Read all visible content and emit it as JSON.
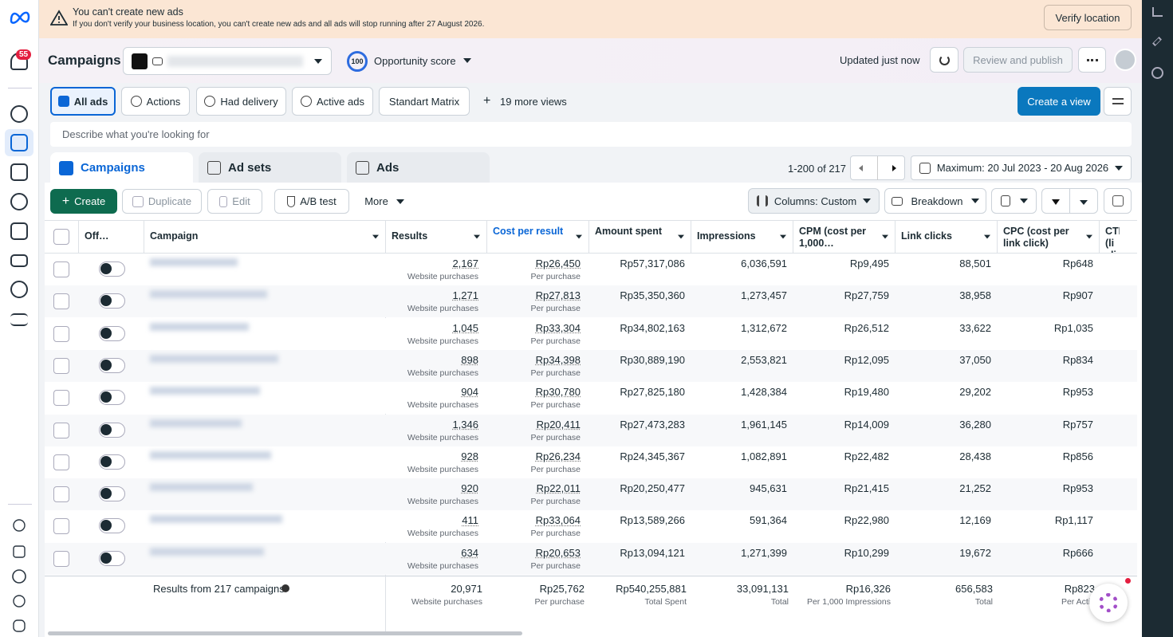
{
  "banner": {
    "title": "You can't create new ads",
    "message": "If you don't verify your business location, you can't create new ads and all ads will stop running after 27 August 2026.",
    "button": "Verify location"
  },
  "sidebar": {
    "notifications": "55"
  },
  "header": {
    "title": "Campaigns",
    "opportunity_score": "100",
    "opportunity_label": "Opportunity score",
    "status": "Updated just now",
    "review_button": "Review and publish"
  },
  "views": {
    "items": [
      "All ads",
      "Actions",
      "Had delivery",
      "Active ads",
      "Standart Matrix"
    ],
    "more": "19 more views",
    "create": "Create a view"
  },
  "search": {
    "placeholder": "Describe what you're looking for"
  },
  "tabs": [
    "Campaigns",
    "Ad sets",
    "Ads"
  ],
  "pagination": "1-200 of 217",
  "date_range": "Maximum: 20 Jul 2023 - 20 Aug 2026",
  "toolbar": {
    "create": "Create",
    "duplicate": "Duplicate",
    "edit": "Edit",
    "ab_test": "A/B test",
    "more": "More",
    "columns": "Columns: Custom",
    "breakdown": "Breakdown"
  },
  "table": {
    "columns": [
      "Off…",
      "Campaign",
      "Results",
      "Cost per result",
      "Amount spent",
      "Impressions",
      "CPM (cost per 1,000…",
      "Link clicks",
      "CPC (cost per link click)",
      "CTR (li click-th"
    ],
    "rows": [
      {
        "results": "2,167",
        "results_label": "Website purchases",
        "cost_per_result": "Rp26,450",
        "cost_label": "Per purchase",
        "amount_spent": "Rp57,317,086",
        "impressions": "6,036,591",
        "cpm": "Rp9,495",
        "link_clicks": "88,501",
        "cpc": "Rp648"
      },
      {
        "results": "1,271",
        "results_label": "Website purchases",
        "cost_per_result": "Rp27,813",
        "cost_label": "Per purchase",
        "amount_spent": "Rp35,350,360",
        "impressions": "1,273,457",
        "cpm": "Rp27,759",
        "link_clicks": "38,958",
        "cpc": "Rp907"
      },
      {
        "results": "1,045",
        "results_label": "Website purchases",
        "cost_per_result": "Rp33,304",
        "cost_label": "Per purchase",
        "amount_spent": "Rp34,802,163",
        "impressions": "1,312,672",
        "cpm": "Rp26,512",
        "link_clicks": "33,622",
        "cpc": "Rp1,035"
      },
      {
        "results": "898",
        "results_label": "Website purchases",
        "cost_per_result": "Rp34,398",
        "cost_label": "Per purchase",
        "amount_spent": "Rp30,889,190",
        "impressions": "2,553,821",
        "cpm": "Rp12,095",
        "link_clicks": "37,050",
        "cpc": "Rp834"
      },
      {
        "results": "904",
        "results_label": "Website purchases",
        "cost_per_result": "Rp30,780",
        "cost_label": "Per purchase",
        "amount_spent": "Rp27,825,180",
        "impressions": "1,428,384",
        "cpm": "Rp19,480",
        "link_clicks": "29,202",
        "cpc": "Rp953"
      },
      {
        "results": "1,346",
        "results_label": "Website purchases",
        "cost_per_result": "Rp20,411",
        "cost_label": "Per purchase",
        "amount_spent": "Rp27,473,283",
        "impressions": "1,961,145",
        "cpm": "Rp14,009",
        "link_clicks": "36,280",
        "cpc": "Rp757"
      },
      {
        "results": "928",
        "results_label": "Website purchases",
        "cost_per_result": "Rp26,234",
        "cost_label": "Per purchase",
        "amount_spent": "Rp24,345,367",
        "impressions": "1,082,891",
        "cpm": "Rp22,482",
        "link_clicks": "28,438",
        "cpc": "Rp856"
      },
      {
        "results": "920",
        "results_label": "Website purchases",
        "cost_per_result": "Rp22,011",
        "cost_label": "Per purchase",
        "amount_spent": "Rp20,250,477",
        "impressions": "945,631",
        "cpm": "Rp21,415",
        "link_clicks": "21,252",
        "cpc": "Rp953"
      },
      {
        "results": "411",
        "results_label": "Website purchases",
        "cost_per_result": "Rp33,064",
        "cost_label": "Per purchase",
        "amount_spent": "Rp13,589,266",
        "impressions": "591,364",
        "cpm": "Rp22,980",
        "link_clicks": "12,169",
        "cpc": "Rp1,117"
      },
      {
        "results": "634",
        "results_label": "Website purchases",
        "cost_per_result": "Rp20,653",
        "cost_label": "Per purchase",
        "amount_spent": "Rp13,094,121",
        "impressions": "1,271,399",
        "cpm": "Rp10,299",
        "link_clicks": "19,672",
        "cpc": "Rp666"
      }
    ],
    "footer": {
      "label": "Results from 217 campaigns",
      "results": "20,971",
      "results_label": "Website purchases",
      "cost_per_result": "Rp25,762",
      "cost_label": "Per purchase",
      "amount_spent": "Rp540,255,881",
      "amount_label": "Total Spent",
      "impressions": "33,091,131",
      "impressions_label": "Total",
      "cpm": "Rp16,326",
      "cpm_label": "Per 1,000 Impressions",
      "link_clicks": "656,583",
      "link_clicks_label": "Total",
      "cpc": "Rp823",
      "cpc_label": "Per Actio"
    }
  }
}
